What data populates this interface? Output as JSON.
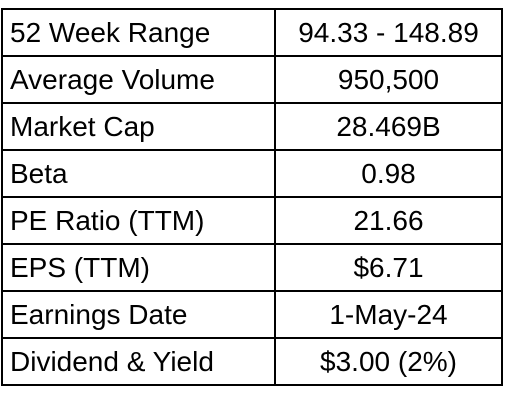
{
  "rows": [
    {
      "label": "52 Week Range",
      "value": "94.33 - 148.89"
    },
    {
      "label": "Average Volume",
      "value": "950,500"
    },
    {
      "label": "Market Cap",
      "value": "28.469B"
    },
    {
      "label": "Beta",
      "value": "0.98"
    },
    {
      "label": "PE Ratio (TTM)",
      "value": "21.66"
    },
    {
      "label": "EPS (TTM)",
      "value": "$6.71"
    },
    {
      "label": "Earnings Date",
      "value": "1-May-24"
    },
    {
      "label": "Dividend & Yield",
      "value": "$3.00 (2%)"
    }
  ]
}
